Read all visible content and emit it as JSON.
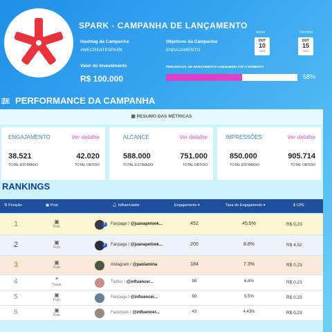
{
  "header": {
    "title": "SPARK  -  CAMPANHA DE LANÇAMENTO",
    "hashtag_label": "Hashtag da Campanha",
    "hashtag_value": "#WECREATESPARK",
    "objective_label": "Objetivos da Campanha",
    "objective_value": "ENGAJAMENTO",
    "start_label": "Início",
    "end_label": "Término",
    "start_date": {
      "month": "OUT",
      "day": "10",
      "year": "2017"
    },
    "end_date": {
      "month": "OUT",
      "day": "15",
      "year": "2017"
    },
    "investment_label": "Valor do Investimento",
    "investment_value": "R$ 100.000",
    "percent_label": "PERCENTUAL DE INVESTIMENTO CONSUMIDO ATÉ O MOMENTO",
    "percent_value": "58%",
    "percent_fraction": 0.58,
    "brand_color": "#e8323c",
    "bar_color": "#e040c8"
  },
  "performance": {
    "title": "PERFORMANCE DA CAMPANHA",
    "summary_title": "RESUMO DAS MÉTRICAS",
    "metrics": [
      {
        "name": "ENGAJAMENTO",
        "detail": "Ver detalhe",
        "estimated": "38.521",
        "obtained": "42.020",
        "estimated_label": "TOTAL ESTIMADO",
        "obtained_label": "TOTAL OBTIDO"
      },
      {
        "name": "ALCANCE",
        "detail": "Ver detalhe",
        "estimated": "588.000",
        "obtained": "751.000",
        "estimated_label": "TOTAL ESTIMADO",
        "obtained_label": "TOTAL OBTIDO"
      },
      {
        "name": "IMPRESSÕES",
        "detail": "Ver detalhe",
        "estimated": "850.000",
        "obtained": "905.714",
        "estimated_label": "TOTAL ESTIMADO",
        "obtained_label": "TOTAL OBTIDO"
      }
    ]
  },
  "rankings": {
    "title": "RANKINGS",
    "columns": [
      "Posição",
      "Post",
      "Influenciador",
      "Engajamento",
      "Taxa de Engajamento",
      "CPE"
    ],
    "rows": [
      {
        "pos": "1",
        "post": "Foto",
        "network": "Fanpage",
        "handle": "@juanapetook...",
        "eng": "452",
        "rate": "45.5%",
        "cpe": "R$  0.23",
        "bg": "#fbf6cf"
      },
      {
        "pos": "2",
        "post": "Foto",
        "network": "Fanpage",
        "handle": "@juanapetook...",
        "eng": "200",
        "rate": "8.8%",
        "cpe": "R$  4.52",
        "bg": "#eef3fb"
      },
      {
        "pos": "3",
        "post": "Foto",
        "network": "Instagram",
        "handle": "@paolamina",
        "eng": "184",
        "rate": "7.3%",
        "cpe": "R$  0.23",
        "bg": "#fbe9d9"
      },
      {
        "pos": "4",
        "post": "Tweet",
        "network": "Twitter",
        "handle": "@influencer...",
        "eng": "98",
        "rate": "6.4%",
        "cpe": "R$  0.23",
        "bg": "#ffffff"
      },
      {
        "pos": "5",
        "post": "Foto",
        "network": "Fanpage",
        "handle": "@influencer...",
        "eng": "59",
        "rate": "5.5%",
        "cpe": "R$  0.23",
        "bg": "#ffffff"
      },
      {
        "pos": "6",
        "post": "Foto",
        "network": "Facebook",
        "handle": "@influencer...",
        "eng": "43",
        "rate": "4.43%",
        "cpe": "R$  0.23",
        "bg": "#ffffff"
      }
    ]
  }
}
